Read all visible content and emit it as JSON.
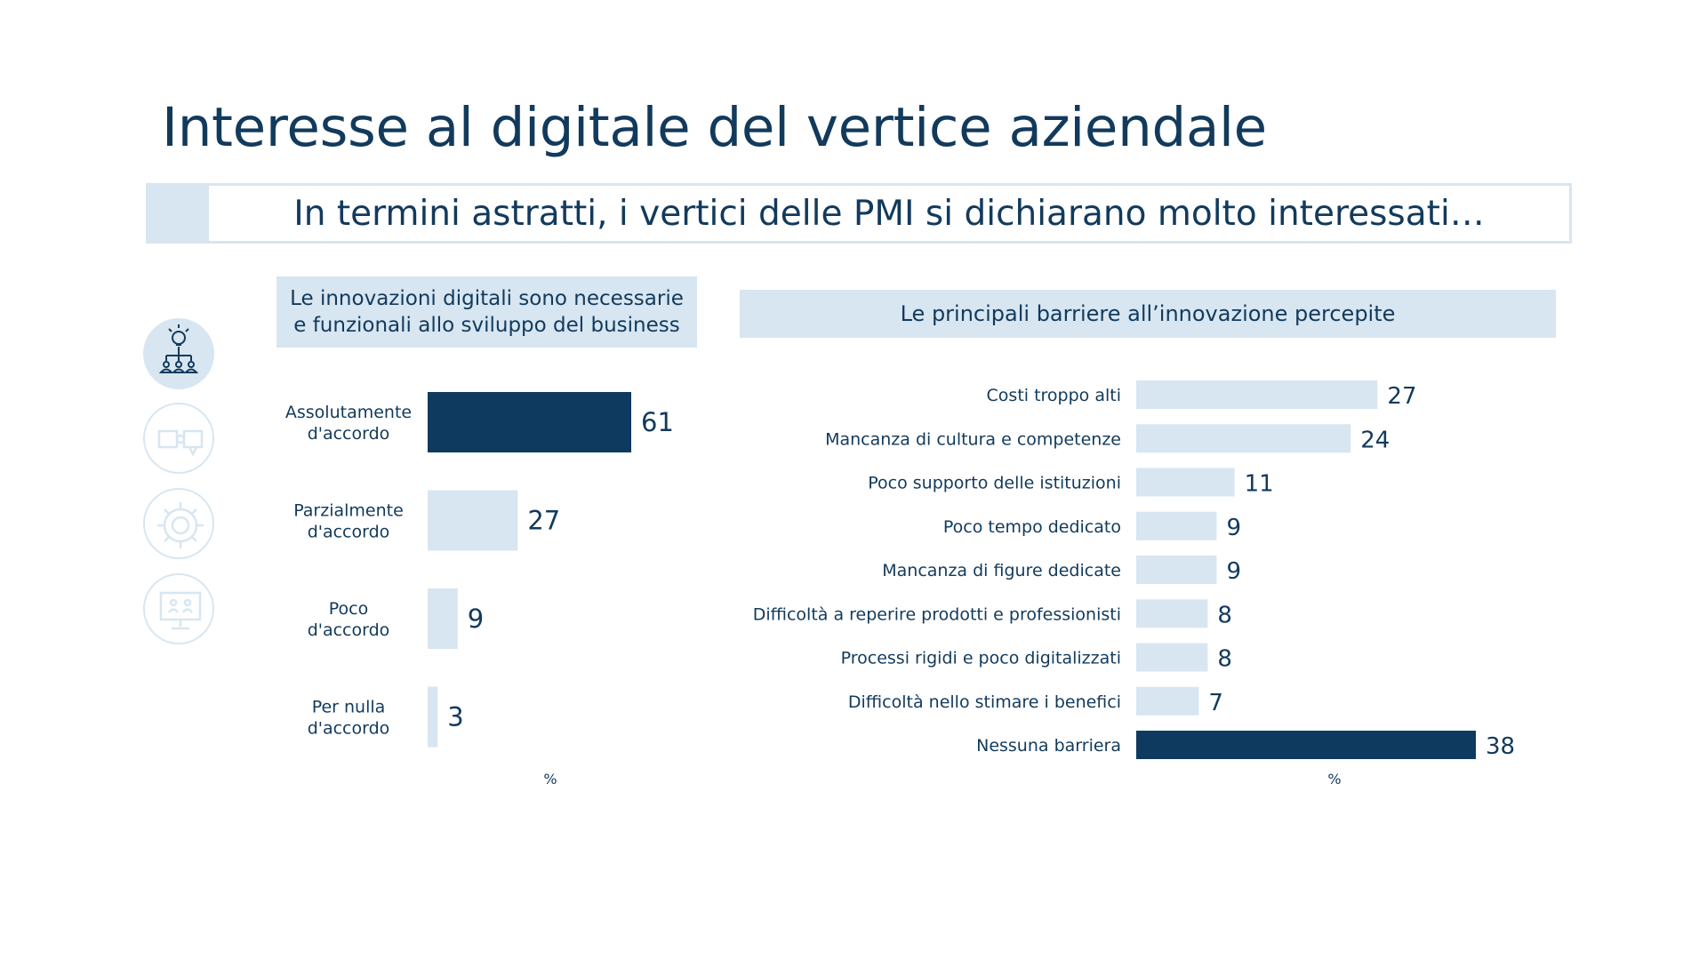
{
  "title": "Interesse al digitale del vertice aziendale",
  "banner": "In termini astratti, i vertici delle PMI si dichiarano molto interessati…",
  "icons": [
    "org-chart-icon",
    "puzzle-icon",
    "gear-icon",
    "monitor-team-icon"
  ],
  "colors": {
    "dark": "#0f3a60",
    "light": "#d7e6f1",
    "text": "#123a5c"
  },
  "chart_data": [
    {
      "type": "bar",
      "orientation": "horizontal",
      "title": "Le innovazioni digitali sono necessarie e funzionali allo sviluppo del business",
      "title_lines": [
        "Le innovazioni digitali sono necessarie",
        "e funzionali allo sviluppo del business"
      ],
      "categories": [
        [
          "Assolutamente",
          "d'accordo"
        ],
        [
          "Parzialmente",
          "d'accordo"
        ],
        [
          "Poco",
          "d'accordo"
        ],
        [
          "Per nulla",
          "d'accordo"
        ]
      ],
      "values": [
        61,
        27,
        9,
        3
      ],
      "highlight": [
        true,
        false,
        false,
        false
      ],
      "unit": "%",
      "xlim": [
        0,
        61
      ]
    },
    {
      "type": "bar",
      "orientation": "horizontal",
      "title": "Le principali barriere all’innovazione percepite",
      "categories": [
        "Costi troppo alti",
        "Mancanza di cultura e competenze",
        "Poco supporto delle istituzioni",
        "Poco tempo dedicato",
        "Mancanza di figure dedicate",
        "Difficoltà a reperire prodotti e professionisti",
        "Processi rigidi e poco digitalizzati",
        "Difficoltà nello stimare i benefici",
        "Nessuna barriera"
      ],
      "values": [
        27,
        24,
        11,
        9,
        9,
        8,
        8,
        7,
        38
      ],
      "highlight": [
        false,
        false,
        false,
        false,
        false,
        false,
        false,
        false,
        true
      ],
      "unit": "%",
      "xlim": [
        0,
        38
      ]
    }
  ]
}
